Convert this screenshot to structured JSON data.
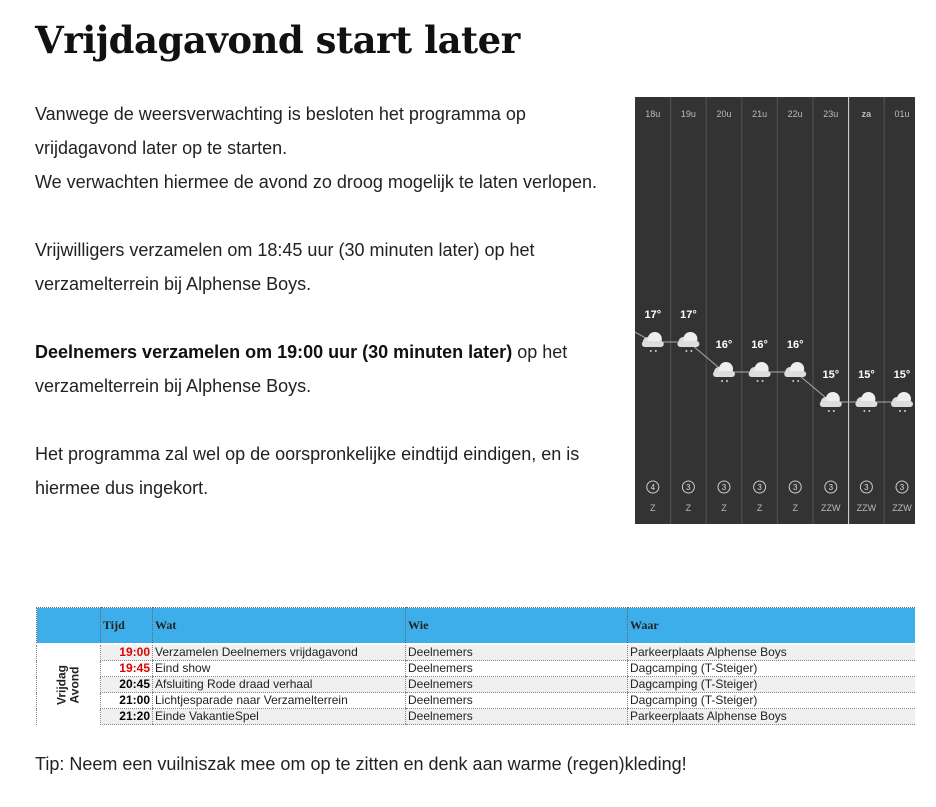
{
  "title": "Vrijdagavond start later",
  "paragraphs": [
    {
      "lines": [
        "Vanwege de weersverwachting is besloten het programma op vrijdagavond later op te starten.",
        "We verwachten hiermee de avond zo droog mogelijk te laten verlopen."
      ]
    },
    {
      "lines": [
        "Vrijwilligers verzamelen om 18:45 uur (30 minuten later) op het verzamelterrein bij Alphense Boys."
      ]
    },
    {
      "bold": "Deelnemers verzamelen om 19:00 uur (30 minuten later)",
      "lines": [
        " op het verzamelterrein bij Alphense Boys."
      ]
    },
    {
      "lines": [
        "Het programma zal wel op de oorspronkelijke eindtijd eindigen, en is hiermee dus ingekort."
      ]
    }
  ],
  "weather": {
    "hours": [
      "18u",
      "19u",
      "20u",
      "21u",
      "22u",
      "23u",
      "za",
      "01u"
    ],
    "temperatures": [
      17,
      17,
      16,
      16,
      16,
      15,
      15,
      15
    ],
    "temperature_labels": [
      "17°",
      "17°",
      "16°",
      "16°",
      "16°",
      "15°",
      "15°",
      "15°"
    ],
    "wind_force": [
      4,
      3,
      3,
      3,
      3,
      3,
      3,
      3
    ],
    "wind_direction": [
      "Z",
      "Z",
      "Z",
      "Z",
      "Z",
      "ZZW",
      "ZZW",
      "ZZW"
    ]
  },
  "table": {
    "headers": [
      "Tijd",
      "Wat",
      "Wie",
      "Waar"
    ],
    "group_label": [
      "Vrijdag",
      "Avond"
    ],
    "rows": [
      {
        "time": "19:00",
        "what": "Verzamelen Deelnemers vrijdagavond",
        "who": "Deelnemers",
        "where": "Parkeerplaats Alphense Boys",
        "time_color": "#e00000"
      },
      {
        "time": "19:45",
        "what": "Eind show",
        "who": "Deelnemers",
        "where": "Dagcamping (T-Steiger)",
        "time_color": "#e00000"
      },
      {
        "time": "20:45",
        "what": "Afsluiting Rode draad verhaal",
        "who": "Deelnemers",
        "where": "Dagcamping (T-Steiger)",
        "time_color": "#000000"
      },
      {
        "time": "21:00",
        "what": "Lichtjesparade naar Verzamelterrein",
        "who": "Deelnemers",
        "where": "Dagcamping (T-Steiger)",
        "time_color": "#000000"
      },
      {
        "time": "21:20",
        "what": "Einde VakantieSpel",
        "who": "Deelnemers",
        "where": "Parkeerplaats Alphense Boys",
        "time_color": "#000000"
      }
    ]
  },
  "tip": "Tip: Neem een vuilniszak mee om op te zitten en denk aan warme (regen)kleding!"
}
